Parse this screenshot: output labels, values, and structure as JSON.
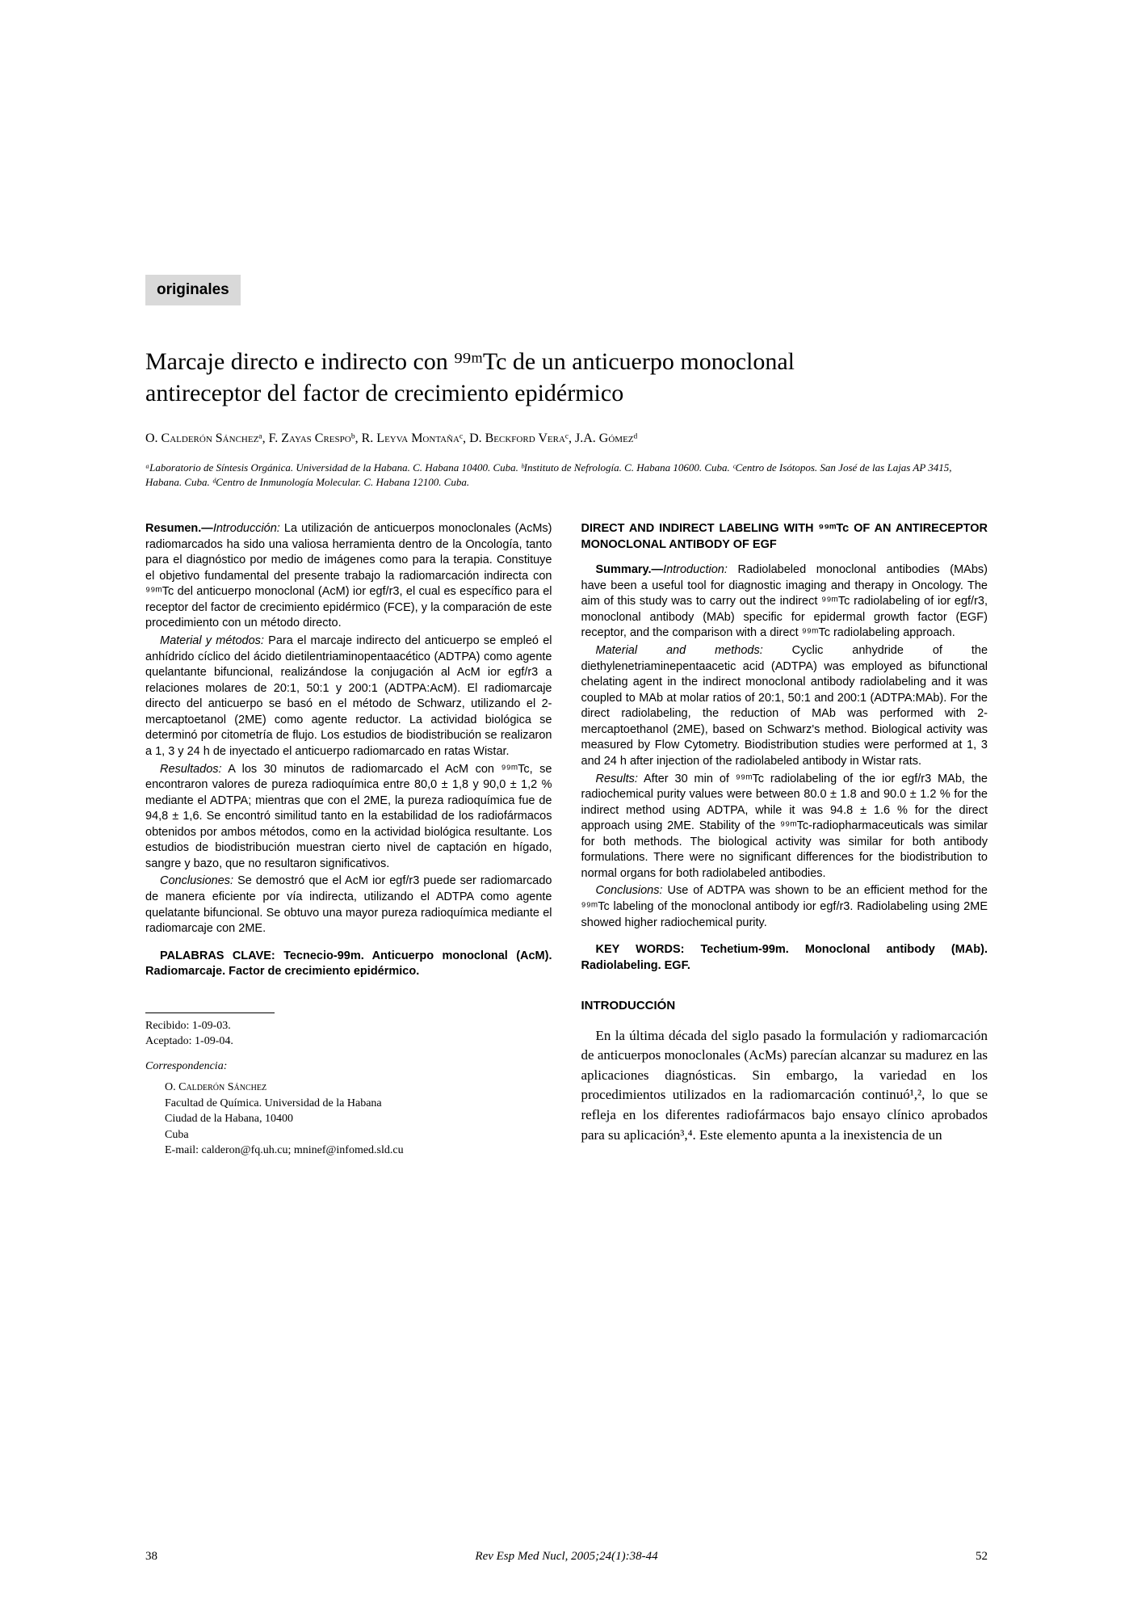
{
  "section_label": "originales",
  "title_line1": "Marcaje directo e indirecto con ⁹⁹ᵐTc de un anticuerpo monoclonal",
  "title_line2": "antireceptor del factor de crecimiento epidérmico",
  "authors": "O. Calderón Sánchezᵃ, F. Zayas Crespoᵇ, R. Leyva Montañaᶜ, D. Beckford Veraᶜ, J.A. Gómezᵈ",
  "affiliations": "ᵃLaboratorio de Síntesis Orgánica. Universidad de la Habana. C. Habana 10400. Cuba. ᵇInstituto de Nefrología. C. Habana 10600. Cuba. ᶜCentro de Isótopos. San José de las Lajas AP 3415, Habana. Cuba. ᵈCentro de Inmunología Molecular. C. Habana 12100. Cuba.",
  "resumen": {
    "p1": "Resumen.—Introducción: La utilización de anticuerpos monoclonales (AcMs) radiomarcados ha sido una valiosa herramienta dentro de la Oncología, tanto para el diagnóstico por medio de imágenes como para la terapia. Constituye el objetivo fundamental del presente trabajo la radiomarcación indirecta con ⁹⁹ᵐTc del anticuerpo monoclonal (AcM) ior egf/r3, el cual es específico para el receptor del factor de crecimiento epidérmico (FCE), y la comparación de este procedimiento con un método directo.",
    "p2": "Material y métodos: Para el marcaje indirecto del anticuerpo se empleó el anhídrido cíclico del ácido dietilentriaminopentaacético (ADTPA) como agente quelantante bifuncional, realizándose la conjugación al AcM ior egf/r3 a relaciones molares de 20:1, 50:1 y 200:1 (ADTPA:AcM). El radiomarcaje directo del anticuerpo se basó en el método de Schwarz, utilizando el 2-mercaptoetanol (2ME) como agente reductor. La actividad biológica se determinó por citometría de flujo. Los estudios de biodistribución se realizaron a 1, 3 y 24 h de inyectado el anticuerpo radiomarcado en ratas Wistar.",
    "p3": "Resultados: A los 30 minutos de radiomarcado el AcM con ⁹⁹ᵐTc, se encontraron valores de pureza radioquímica entre 80,0 ± 1,8 y 90,0 ± 1,2 % mediante el ADTPA; mientras que con el 2ME, la pureza radioquímica fue de 94,8 ± 1,6. Se encontró similitud tanto en la estabilidad de los radiofármacos obtenidos por ambos métodos, como en la actividad biológica resultante. Los estudios de biodistribución muestran cierto nivel de captación en hígado, sangre y bazo, que no resultaron significativos.",
    "p4": "Conclusiones: Se demostró que el AcM ior egf/r3 puede ser radiomarcado de manera eficiente por vía indirecta, utilizando el ADTPA como agente quelatante bifuncional. Se obtuvo una mayor pureza radioquímica mediante el radiomarcaje con 2ME.",
    "keywords": "PALABRAS CLAVE: Tecnecio-99m. Anticuerpo monoclonal (AcM). Radiomarcaje. Factor de crecimiento epidérmico."
  },
  "english_title": "DIRECT AND INDIRECT LABELING WITH ⁹⁹ᵐTc OF AN ANTIRECEPTOR MONOCLONAL ANTIBODY OF EGF",
  "summary": {
    "p1": "Summary.—Introduction: Radiolabeled monoclonal antibodies (MAbs) have been a useful tool for diagnostic imaging and therapy in Oncology. The aim of this study was to carry out the indirect ⁹⁹ᵐTc radiolabeling of ior egf/r3, monoclonal antibody (MAb) specific for epidermal growth factor (EGF) receptor, and the comparison with a direct ⁹⁹ᵐTc radiolabeling approach.",
    "p2": "Material and methods: Cyclic anhydride of the diethylenetriaminepentaacetic acid (ADTPA) was employed as bifunctional chelating agent in the indirect monoclonal antibody radiolabeling and it was coupled to MAb at molar ratios of 20:1, 50:1 and 200:1 (ADTPA:MAb). For the direct radiolabeling, the reduction of MAb was performed with 2-mercaptoethanol (2ME), based on Schwarz's method. Biological activity was measured by Flow Cytometry. Biodistribution studies were performed at 1, 3 and 24 h after injection of the radiolabeled antibody in Wistar rats.",
    "p3": "Results: After 30 min of ⁹⁹ᵐTc radiolabeling of the ior egf/r3 MAb, the radiochemical purity values were between 80.0 ± 1.8 and 90.0 ± 1.2 % for the indirect method using ADTPA, while it was 94.8 ± 1.6 % for the direct approach using 2ME. Stability of the ⁹⁹ᵐTc-radiopharmaceuticals was similar for both methods. The biological activity was similar for both antibody formulations. There were no significant differences for the biodistribution to normal organs for both radiolabeled antibodies.",
    "p4": "Conclusions: Use of ADTPA was shown to be an efficient method for the ⁹⁹ᵐTc labeling of the monoclonal antibody ior egf/r3. Radiolabeling using 2ME showed higher radiochemical purity.",
    "keywords": "KEY WORDS: Techetium-99m. Monoclonal antibody (MAb). Radiolabeling. EGF."
  },
  "intro_heading": "INTRODUCCIÓN",
  "intro_text": "En la última década del siglo pasado la formulación y radiomarcación de anticuerpos monoclonales (AcMs) parecían alcanzar su madurez en las aplicaciones diagnósticas. Sin embargo, la variedad en los procedimientos utilizados en la radiomarcación continuó¹,², lo que se refleja en los diferentes radiofármacos bajo ensayo clínico aprobados para su aplicación³,⁴. Este elemento apunta a la inexistencia de un",
  "dates": {
    "received": "Recibido: 1-09-03.",
    "accepted": "Aceptado: 1-09-04."
  },
  "correspondence": {
    "label": "Correspondencia:",
    "name": "O. Calderón Sánchez",
    "line1": "Facultad de Química. Universidad de la Habana",
    "line2": "Ciudad de la Habana, 10400",
    "line3": "Cuba",
    "email": "E-mail: calderon@fq.uh.cu; mninef@infomed.sld.cu"
  },
  "footer": {
    "page_left": "38",
    "citation": "Rev Esp Med Nucl, 2005;24(1):38-44",
    "page_right": "52"
  }
}
